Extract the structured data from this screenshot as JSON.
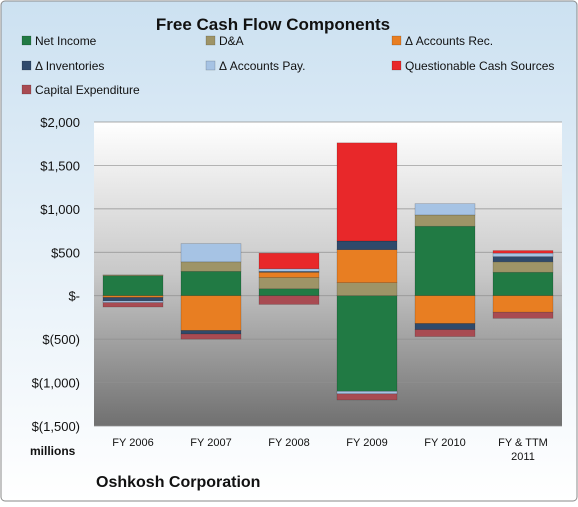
{
  "chart_data": {
    "type": "bar",
    "stacked": true,
    "title": "Free Cash Flow Components",
    "ylabel": "millions",
    "footer": "Oshkosh Corporation",
    "ylim": [
      -1500,
      2000
    ],
    "ytick_values": [
      2000,
      1500,
      1000,
      500,
      0,
      -500,
      -1000,
      -1500
    ],
    "ytick_labels": [
      "$2,000",
      "$1,500",
      "$1,000",
      "$500",
      "$-",
      "$(500)",
      "$(1,000)",
      "$(1,500)"
    ],
    "categories": [
      "FY 2006",
      "FY 2007",
      "FY 2008",
      "FY 2009",
      "FY 2010",
      "FY & TTM 2011"
    ],
    "grid": true,
    "legend_position": "top",
    "series": [
      {
        "name": "Net Income",
        "color": "#217A44",
        "values": [
          230,
          280,
          80,
          -1100,
          800,
          270
        ]
      },
      {
        "name": "D&A",
        "color": "#9E9467",
        "values": [
          10,
          110,
          130,
          150,
          130,
          120
        ]
      },
      {
        "name": "Δ Accounts Rec.",
        "color": "#E87E22",
        "values": [
          -20,
          -400,
          60,
          380,
          -320,
          -190
        ]
      },
      {
        "name": "Δ Inventories",
        "color": "#2F4A6B",
        "values": [
          -40,
          -40,
          10,
          100,
          -70,
          60
        ]
      },
      {
        "name": "Δ Accounts Pay.",
        "color": "#A6C3E4",
        "values": [
          -20,
          210,
          30,
          -30,
          130,
          40
        ]
      },
      {
        "name": "Questionable Cash Sources",
        "color": "#E8282A",
        "values": [
          0,
          0,
          180,
          1130,
          0,
          30
        ]
      },
      {
        "name": "Capital Expenditure",
        "color": "#A84B52",
        "values": [
          -50,
          -60,
          -100,
          -70,
          -80,
          -70
        ]
      }
    ]
  }
}
